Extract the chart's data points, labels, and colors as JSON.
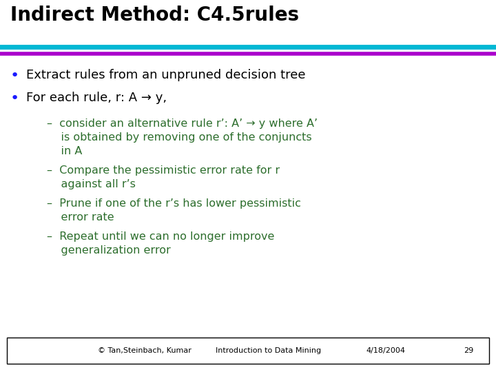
{
  "title": "Indirect Method: C4.5rules",
  "title_fontsize": 20,
  "title_fontweight": "bold",
  "title_color": "#000000",
  "bg_color": "#ffffff",
  "line1_color": "#00b8d4",
  "line2_color": "#aa00cc",
  "bullet_color": "#1a1aff",
  "bullet1": "Extract rules from an unpruned decision tree",
  "bullet2": "For each rule, r: A → y,",
  "sub1_line1": "–  consider an alternative rule r’: A’ → y where A’",
  "sub1_line2": "    is obtained by removing one of the conjuncts",
  "sub1_line3": "    in A",
  "sub2_line1": "–  Compare the pessimistic error rate for r",
  "sub2_line2": "    against all r’s",
  "sub3_line1": "–  Prune if one of the r’s has lower pessimistic",
  "sub3_line2": "    error rate",
  "sub4_line1": "–  Repeat until we can no longer improve",
  "sub4_line2": "    generalization error",
  "footer_left": "© Tan,Steinbach, Kumar",
  "footer_mid": "Introduction to Data Mining",
  "footer_right": "4/18/2004",
  "footer_page": "29",
  "text_color": "#000000",
  "sub_text_color": "#2d6e2d",
  "footer_box_color": "#000000",
  "fs_main": 13,
  "fs_sub": 11.5,
  "fs_footer": 8
}
